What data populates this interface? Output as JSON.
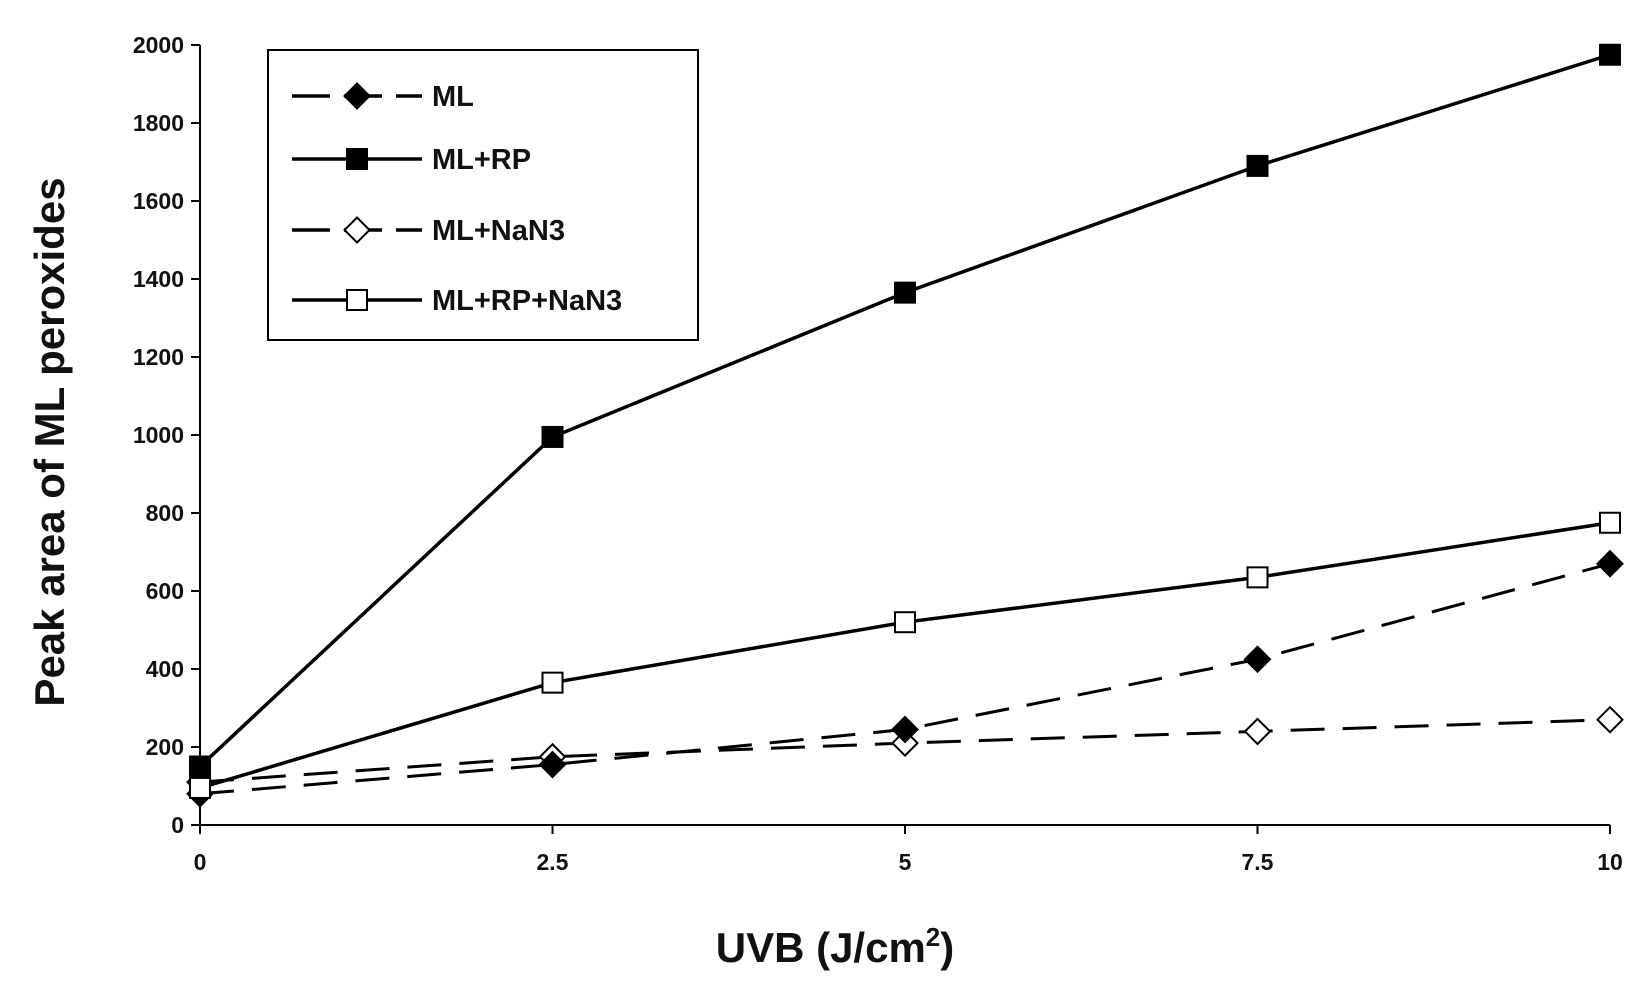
{
  "chart_data": {
    "type": "line",
    "title": "",
    "xlabel": "UVB (J/cm",
    "xlabel_sup": "2",
    "xlabel_suffix": ")",
    "ylabel": "Peak area of ML peroxides",
    "x": [
      0,
      2.5,
      5,
      7.5,
      10
    ],
    "x_ticks": [
      "0",
      "2.5",
      "5",
      "7.5",
      "10"
    ],
    "y_ticks": [
      "0",
      "200",
      "400",
      "600",
      "800",
      "1000",
      "1200",
      "1400",
      "1600",
      "1800",
      "2000"
    ],
    "xlim": [
      0,
      10
    ],
    "ylim": [
      0,
      2000
    ],
    "grid": false,
    "legend_position": "top-left",
    "series": [
      {
        "name": "ML",
        "values": [
          80,
          155,
          245,
          425,
          670
        ],
        "line": "dashed",
        "marker": "diamond",
        "marker_fill": "#000000",
        "color": "#000000"
      },
      {
        "name": "ML+RP",
        "values": [
          150,
          995,
          1365,
          1690,
          1975
        ],
        "line": "solid",
        "marker": "square",
        "marker_fill": "#000000",
        "color": "#000000"
      },
      {
        "name": "ML+NaN3",
        "values": [
          110,
          175,
          210,
          240,
          270
        ],
        "line": "dashed",
        "marker": "diamond",
        "marker_fill": "#ffffff",
        "color": "#000000"
      },
      {
        "name": "ML+RP+NaN3",
        "values": [
          95,
          365,
          520,
          635,
          775
        ],
        "line": "solid",
        "marker": "square",
        "marker_fill": "#ffffff",
        "color": "#000000"
      }
    ]
  }
}
